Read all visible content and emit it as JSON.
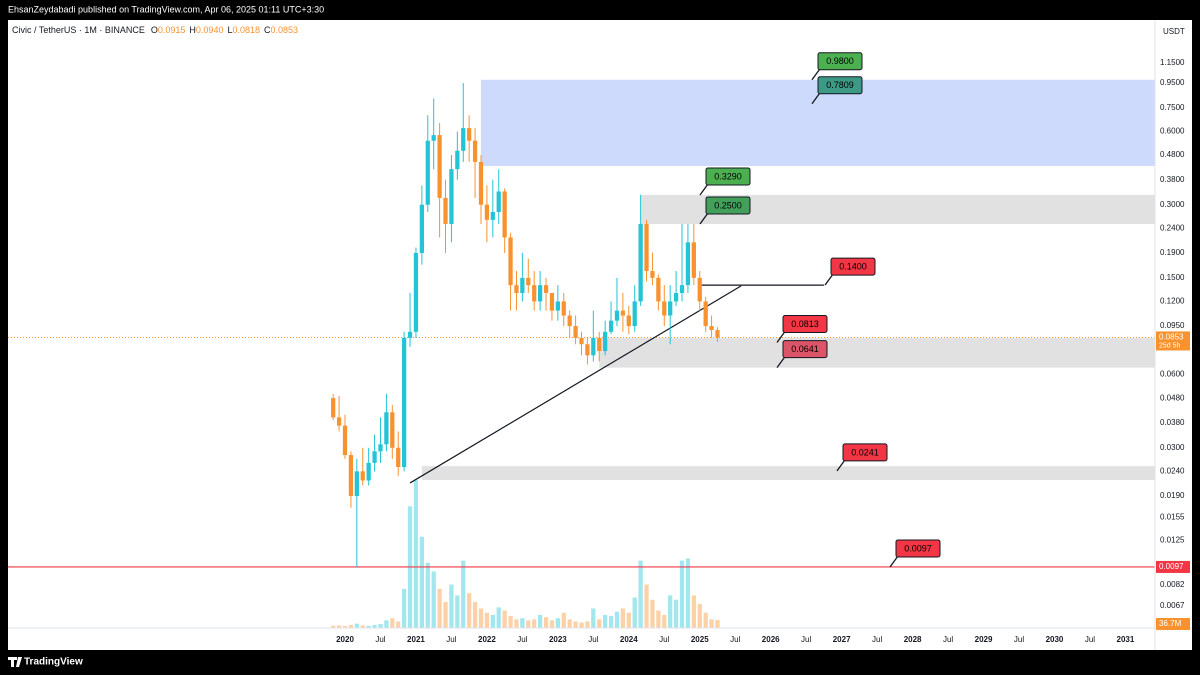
{
  "header": {
    "publisher": "EhsanZeydabadi published on TradingView.com, Apr 06, 2025 01:11 UTC+3:30",
    "symbol": "Civic / TetherUS · 1M · BINANCE",
    "ohlc": [
      {
        "key": "O",
        "value": "0.0915"
      },
      {
        "key": "H",
        "value": "0.0940"
      },
      {
        "key": "L",
        "value": "0.0818"
      },
      {
        "key": "C",
        "value": "0.0853"
      }
    ]
  },
  "footer": "TradingView",
  "chart_data": {
    "type": "candlestick",
    "currency": "USDT",
    "log_scale": true,
    "grid": false,
    "up_color": "#22c4d6",
    "down_color": "#f7922f",
    "xlim": [
      "2015-04",
      "2031-06"
    ],
    "ylim": [
      0.00544,
      1.726
    ],
    "xticks": [
      {
        "value": "2020-01",
        "label": "2020"
      },
      {
        "value": "2020-07",
        "label": "Jul"
      },
      {
        "value": "2021-01",
        "label": "2021"
      },
      {
        "value": "2021-07",
        "label": "Jul"
      },
      {
        "value": "2022-01",
        "label": "2022"
      },
      {
        "value": "2022-07",
        "label": "Jul"
      },
      {
        "value": "2023-01",
        "label": "2023"
      },
      {
        "value": "2023-07",
        "label": "Jul"
      },
      {
        "value": "2024-01",
        "label": "2024"
      },
      {
        "value": "2024-07",
        "label": "Jul"
      },
      {
        "value": "2025-01",
        "label": "2025"
      },
      {
        "value": "2025-07",
        "label": "Jul"
      },
      {
        "value": "2026-01",
        "label": "2026"
      },
      {
        "value": "2026-07",
        "label": "Jul"
      },
      {
        "value": "2027-01",
        "label": "2027"
      },
      {
        "value": "2027-07",
        "label": "Jul"
      },
      {
        "value": "2028-01",
        "label": "2028"
      },
      {
        "value": "2028-07",
        "label": "Jul"
      },
      {
        "value": "2029-01",
        "label": "2029"
      },
      {
        "value": "2029-07",
        "label": "Jul"
      },
      {
        "value": "2030-01",
        "label": "2030"
      },
      {
        "value": "2030-07",
        "label": "Jul"
      },
      {
        "value": "2031-01",
        "label": "2031"
      }
    ],
    "yticks": [
      {
        "value": 1.15,
        "label": "1.1500"
      },
      {
        "value": 0.95,
        "label": "0.9500"
      },
      {
        "value": 0.75,
        "label": "0.7500"
      },
      {
        "value": 0.6,
        "label": "0.6000"
      },
      {
        "value": 0.48,
        "label": "0.4800"
      },
      {
        "value": 0.38,
        "label": "0.3800"
      },
      {
        "value": 0.3,
        "label": "0.3000"
      },
      {
        "value": 0.24,
        "label": "0.2400"
      },
      {
        "value": 0.19,
        "label": "0.1900"
      },
      {
        "value": 0.15,
        "label": "0.1500"
      },
      {
        "value": 0.12,
        "label": "0.1200"
      },
      {
        "value": 0.095,
        "label": "0.0950"
      },
      {
        "value": 0.06,
        "label": "0.0600"
      },
      {
        "value": 0.048,
        "label": "0.0480"
      },
      {
        "value": 0.038,
        "label": "0.0380"
      },
      {
        "value": 0.03,
        "label": "0.0300"
      },
      {
        "value": 0.024,
        "label": "0.0240"
      },
      {
        "value": 0.019,
        "label": "0.0190"
      },
      {
        "value": 0.0155,
        "label": "0.0155"
      },
      {
        "value": 0.0125,
        "label": "0.0125"
      },
      {
        "value": 0.0082,
        "label": "0.0082"
      },
      {
        "value": 0.0067,
        "label": "0.0067"
      }
    ],
    "x": [
      "2019-11",
      "2019-12",
      "2020-01",
      "2020-02",
      "2020-03",
      "2020-04",
      "2020-05",
      "2020-06",
      "2020-07",
      "2020-08",
      "2020-09",
      "2020-10",
      "2020-11",
      "2020-12",
      "2021-01",
      "2021-02",
      "2021-03",
      "2021-04",
      "2021-05",
      "2021-06",
      "2021-07",
      "2021-08",
      "2021-09",
      "2021-10",
      "2021-11",
      "2021-12",
      "2022-01",
      "2022-02",
      "2022-03",
      "2022-04",
      "2022-05",
      "2022-06",
      "2022-07",
      "2022-08",
      "2022-09",
      "2022-10",
      "2022-11",
      "2022-12",
      "2023-01",
      "2023-02",
      "2023-03",
      "2023-04",
      "2023-05",
      "2023-06",
      "2023-07",
      "2023-08",
      "2023-09",
      "2023-10",
      "2023-11",
      "2023-12",
      "2024-01",
      "2024-02",
      "2024-03",
      "2024-04",
      "2024-05",
      "2024-06",
      "2024-07",
      "2024-08",
      "2024-09",
      "2024-10",
      "2024-11",
      "2024-12",
      "2025-01",
      "2025-02",
      "2025-03",
      "2025-04"
    ],
    "open": [
      0.048,
      0.04,
      0.037,
      0.028,
      0.019,
      0.024,
      0.022,
      0.026,
      0.029,
      0.031,
      0.042,
      0.03,
      0.025,
      0.085,
      0.09,
      0.19,
      0.3,
      0.55,
      0.58,
      0.32,
      0.25,
      0.42,
      0.5,
      0.62,
      0.55,
      0.45,
      0.3,
      0.26,
      0.28,
      0.34,
      0.22,
      0.14,
      0.13,
      0.15,
      0.14,
      0.12,
      0.14,
      0.13,
      0.11,
      0.12,
      0.105,
      0.095,
      0.085,
      0.08,
      0.072,
      0.085,
      0.075,
      0.09,
      0.1,
      0.11,
      0.105,
      0.095,
      0.12,
      0.25,
      0.16,
      0.15,
      0.12,
      0.105,
      0.12,
      0.13,
      0.14,
      0.21,
      0.15,
      0.12,
      0.095,
      0.0915
    ],
    "high": [
      0.05,
      0.049,
      0.041,
      0.029,
      0.027,
      0.03,
      0.03,
      0.034,
      0.04,
      0.05,
      0.045,
      0.035,
      0.09,
      0.13,
      0.2,
      0.36,
      0.7,
      0.82,
      0.65,
      0.38,
      0.48,
      0.6,
      0.95,
      0.7,
      0.62,
      0.48,
      0.36,
      0.38,
      0.42,
      0.35,
      0.23,
      0.16,
      0.19,
      0.18,
      0.16,
      0.16,
      0.15,
      0.13,
      0.14,
      0.13,
      0.11,
      0.105,
      0.09,
      0.085,
      0.11,
      0.09,
      0.1,
      0.12,
      0.15,
      0.13,
      0.115,
      0.14,
      0.33,
      0.26,
      0.19,
      0.155,
      0.14,
      0.14,
      0.16,
      0.25,
      0.25,
      0.25,
      0.16,
      0.125,
      0.105,
      0.094
    ],
    "low": [
      0.039,
      0.035,
      0.027,
      0.017,
      0.0097,
      0.021,
      0.021,
      0.024,
      0.026,
      0.029,
      0.027,
      0.023,
      0.024,
      0.078,
      0.085,
      0.17,
      0.28,
      0.42,
      0.22,
      0.19,
      0.21,
      0.38,
      0.45,
      0.45,
      0.32,
      0.25,
      0.21,
      0.22,
      0.25,
      0.19,
      0.11,
      0.11,
      0.12,
      0.13,
      0.11,
      0.11,
      0.11,
      0.1,
      0.1,
      0.095,
      0.085,
      0.08,
      0.072,
      0.066,
      0.068,
      0.068,
      0.072,
      0.088,
      0.095,
      0.09,
      0.088,
      0.09,
      0.115,
      0.145,
      0.14,
      0.11,
      0.095,
      0.08,
      0.115,
      0.12,
      0.13,
      0.14,
      0.11,
      0.09,
      0.085,
      0.0818
    ],
    "close": [
      0.04,
      0.037,
      0.028,
      0.019,
      0.024,
      0.022,
      0.026,
      0.029,
      0.031,
      0.042,
      0.03,
      0.025,
      0.085,
      0.09,
      0.19,
      0.3,
      0.55,
      0.58,
      0.32,
      0.25,
      0.42,
      0.5,
      0.62,
      0.55,
      0.45,
      0.3,
      0.26,
      0.28,
      0.34,
      0.22,
      0.14,
      0.13,
      0.15,
      0.14,
      0.12,
      0.14,
      0.13,
      0.11,
      0.12,
      0.105,
      0.095,
      0.085,
      0.08,
      0.072,
      0.085,
      0.075,
      0.09,
      0.1,
      0.11,
      0.105,
      0.095,
      0.12,
      0.25,
      0.16,
      0.15,
      0.12,
      0.105,
      0.12,
      0.13,
      0.14,
      0.21,
      0.15,
      0.12,
      0.095,
      0.0915,
      0.0853
    ],
    "volume": [
      10,
      12,
      9,
      14,
      20,
      12,
      10,
      14,
      18,
      35,
      45,
      30,
      180,
      560,
      680,
      420,
      300,
      260,
      180,
      120,
      200,
      150,
      310,
      160,
      120,
      90,
      70,
      60,
      95,
      80,
      55,
      40,
      45,
      35,
      40,
      60,
      50,
      35,
      45,
      70,
      40,
      30,
      25,
      30,
      90,
      40,
      60,
      55,
      75,
      90,
      70,
      140,
      310,
      200,
      130,
      80,
      60,
      150,
      130,
      310,
      320,
      150,
      110,
      70,
      40,
      36.7
    ],
    "volume_lim": [
      0,
      750
    ],
    "volume_label": "36.7M",
    "price_label": "0.0853",
    "countdown": "25d 5h",
    "zones": [
      {
        "low": 0.433,
        "high": 0.98,
        "from": "2021-12",
        "color": "#c6d3fb"
      },
      {
        "low": 0.25,
        "high": 0.329,
        "from": "2024-03",
        "color": "#dcdcdc"
      },
      {
        "low": 0.0641,
        "high": 0.0848,
        "from": "2023-08",
        "color": "#dcdcdc"
      },
      {
        "low": 0.0221,
        "high": 0.0252,
        "from": "2021-02",
        "color": "#dcdcdc"
      }
    ],
    "lines": [
      {
        "x": [
          "2020-12",
          "2025-08"
        ],
        "y": [
          0.0215,
          0.139
        ]
      },
      {
        "x": [
          "2025-01",
          "2026-10"
        ],
        "y": [
          0.14,
          0.14
        ]
      }
    ],
    "hline": {
      "value": 0.0097,
      "label": "0.0097",
      "color": "#f23645"
    },
    "annotations": [
      {
        "value": 0.98,
        "label": "0.9800",
        "color": "#4caf50"
      },
      {
        "value": 0.7809,
        "label": "0.7809",
        "color": "#3c9a84"
      },
      {
        "value": 0.329,
        "label": "0.3290",
        "color": "#4caf50"
      },
      {
        "value": 0.25,
        "label": "0.2500",
        "color": "#43a05a"
      },
      {
        "value": 0.14,
        "label": "0.1400",
        "color": "#f23645"
      },
      {
        "value": 0.0813,
        "label": "0.0813",
        "color": "#f23645"
      },
      {
        "value": 0.0641,
        "label": "0.0641",
        "color": "#dc5468"
      },
      {
        "value": 0.0241,
        "label": "0.0241",
        "color": "#f23645"
      },
      {
        "value": 0.0097,
        "label": "0.0097",
        "color": "#f23645"
      }
    ]
  }
}
